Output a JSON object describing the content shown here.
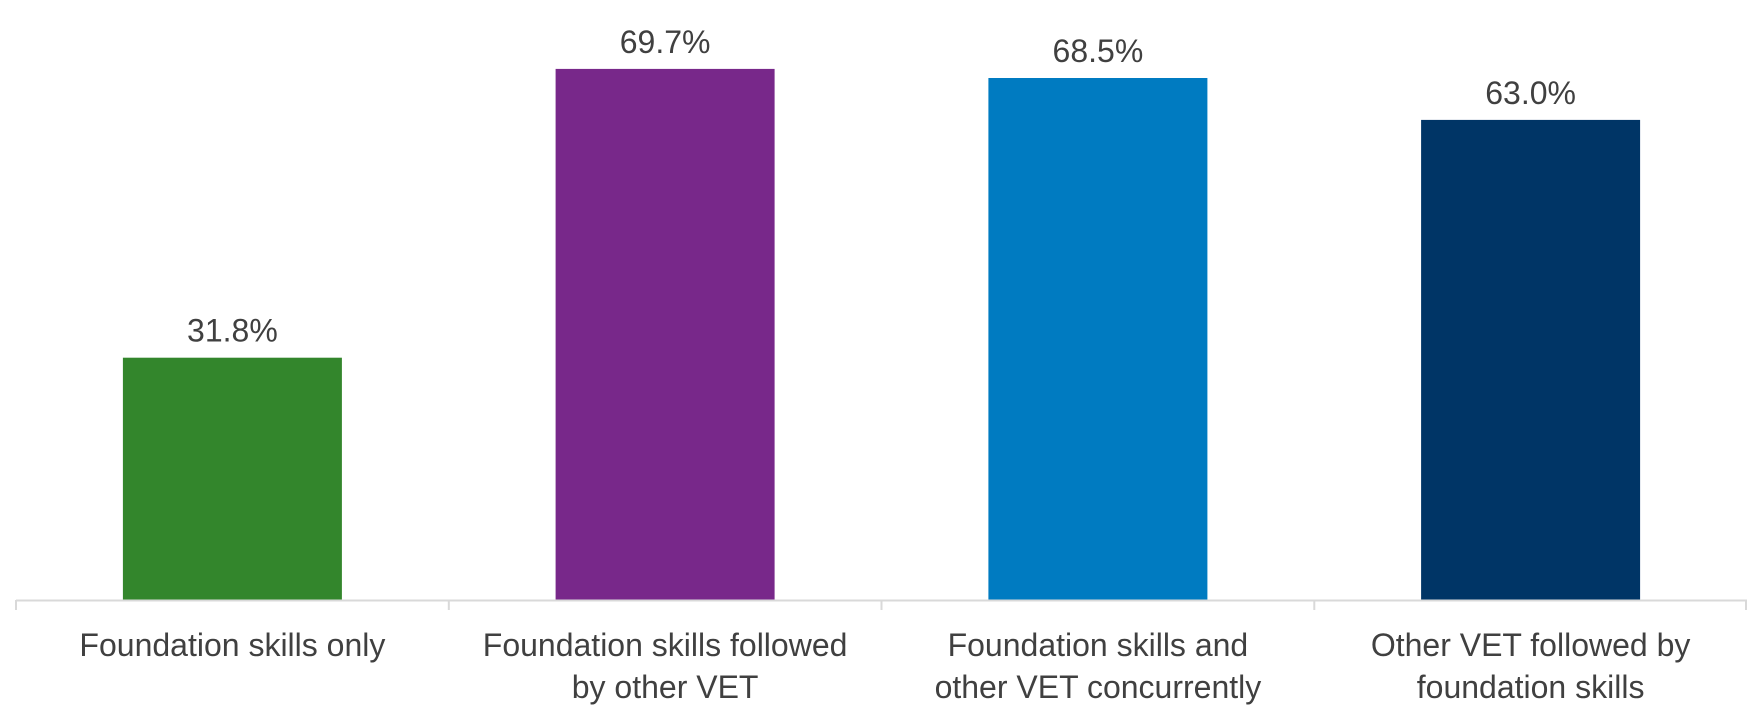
{
  "chart_data": {
    "type": "bar",
    "categories": [
      [
        "Foundation skills only"
      ],
      [
        "Foundation skills followed",
        "by other VET"
      ],
      [
        "Foundation skills and",
        "other VET concurrently"
      ],
      [
        "Other VET followed by",
        "foundation skills"
      ]
    ],
    "values": [
      31.8,
      69.7,
      68.5,
      63.0
    ],
    "value_labels": [
      "31.8%",
      "69.7%",
      "68.5%",
      "63.0%"
    ],
    "colors": [
      "#33862c",
      "#78288a",
      "#007bc1",
      "#003566"
    ],
    "axis_color": "#d9d9d9",
    "ylim": [
      0,
      70
    ],
    "title": "",
    "xlabel": "",
    "ylabel": "",
    "grid": false,
    "legend": "none"
  }
}
